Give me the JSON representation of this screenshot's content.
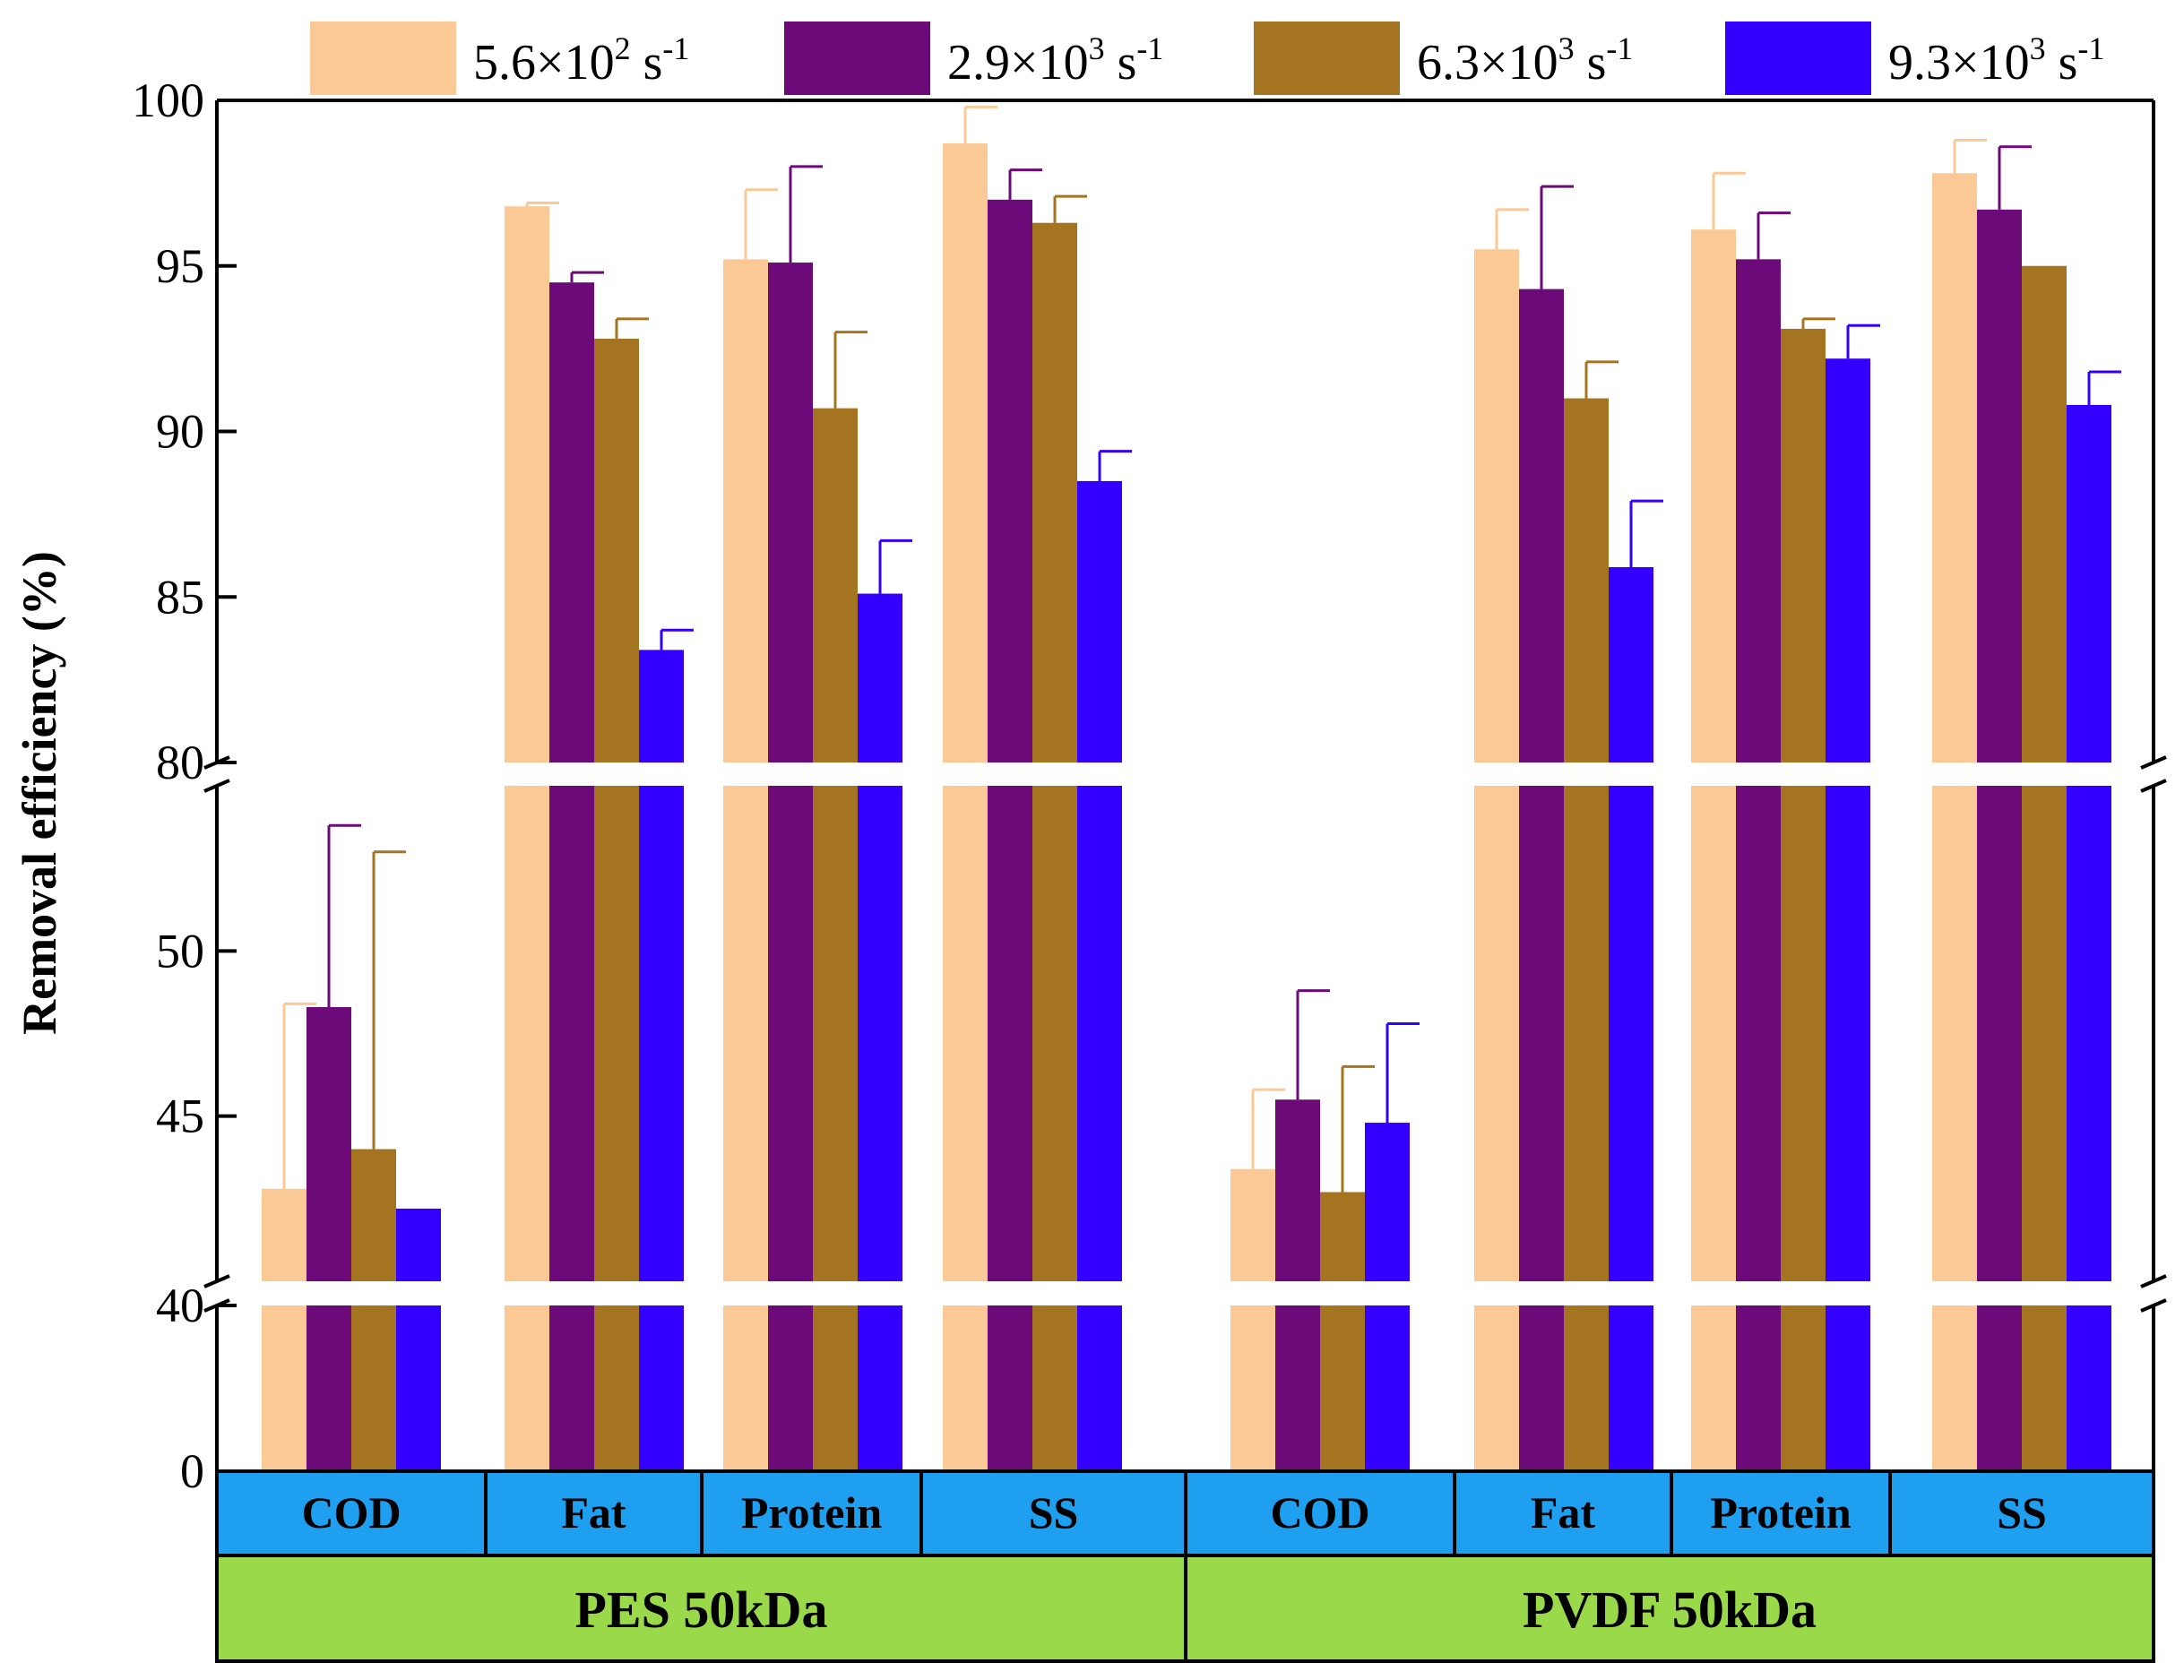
{
  "chart_data": {
    "type": "bar",
    "ylabel": "Removal efficiency (%)",
    "axis_break": {
      "segments": [
        {
          "range": [
            0,
            40
          ],
          "ticks": [
            0
          ]
        },
        {
          "range": [
            40,
            55
          ],
          "ticks": [
            40,
            45,
            50
          ]
        },
        {
          "range": [
            80,
            100
          ],
          "ticks": [
            80,
            85,
            90,
            95,
            100
          ]
        }
      ]
    },
    "y_tick_labels": [
      "0",
      "40",
      "45",
      "50",
      "80",
      "85",
      "90",
      "95",
      "100"
    ],
    "legend": [
      {
        "mantissa": "5.6×10",
        "exp": "2",
        "unit": " s",
        "unit_exp": "-1"
      },
      {
        "mantissa": "2.9×10",
        "exp": "3",
        "unit": " s",
        "unit_exp": "-1"
      },
      {
        "mantissa": "6.3×10",
        "exp": "3",
        "unit": " s",
        "unit_exp": "-1"
      },
      {
        "mantissa": "9.3×10",
        "exp": "3",
        "unit": " s",
        "unit_exp": "-1"
      }
    ],
    "colors": [
      "#FBC996",
      "#6C0A7A",
      "#A57421",
      "#3300FF"
    ],
    "category_bar_color": "#1E9FF0",
    "group_bar_color": "#9AD94A",
    "groups": [
      {
        "name": "PES 50kDa",
        "categories": [
          "COD",
          "Fat",
          "Protein",
          "SS"
        ]
      },
      {
        "name": "PVDF 50kDa",
        "categories": [
          "COD",
          "Fat",
          "Protein",
          "SS"
        ]
      }
    ],
    "series_names": [
      "5.6×10^2 s^-1",
      "2.9×10^3 s^-1",
      "6.3×10^3 s^-1",
      "9.3×10^3 s^-1"
    ],
    "values": [
      [
        42.8,
        48.3,
        44.0,
        42.2
      ],
      [
        96.8,
        94.5,
        92.8,
        83.4
      ],
      [
        95.2,
        95.1,
        90.7,
        85.1
      ],
      [
        98.7,
        97.0,
        96.3,
        88.5
      ],
      [
        43.4,
        45.5,
        42.7,
        44.8
      ],
      [
        95.5,
        94.3,
        91.0,
        85.9
      ],
      [
        96.1,
        95.2,
        93.1,
        92.2
      ],
      [
        97.8,
        96.7,
        95.0,
        90.8
      ]
    ],
    "errors": [
      [
        5.6,
        5.5,
        9.0,
        null
      ],
      [
        0.1,
        0.3,
        0.6,
        0.6
      ],
      [
        2.1,
        2.9,
        2.3,
        1.6
      ],
      [
        1.1,
        0.9,
        0.8,
        0.9
      ],
      [
        2.4,
        3.3,
        3.8,
        3.0
      ],
      [
        1.2,
        3.1,
        1.1,
        2.0
      ],
      [
        1.7,
        1.4,
        0.3,
        1.0
      ],
      [
        1.0,
        1.9,
        null,
        1.0
      ]
    ]
  }
}
